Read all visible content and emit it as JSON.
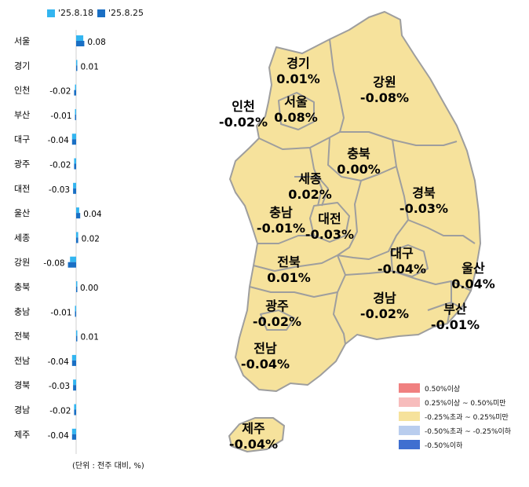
{
  "legend_top": [
    {
      "label": "'25.8.18",
      "color": "#33b5f0"
    },
    {
      "label": "'25.8.25",
      "color": "#1a6fc4"
    }
  ],
  "unit_note": "(단위 : 전주 대비, %)",
  "map_legend": [
    {
      "label": "0.50%이상",
      "color": "#f08080"
    },
    {
      "label": "0.25%이상 ~ 0.50%미만",
      "color": "#f7bcbc"
    },
    {
      "label": "-0.25%초과 ~ 0.25%미만",
      "color": "#f6e29c"
    },
    {
      "label": "-0.50%초과 ~ -0.25%이하",
      "color": "#b9cdee"
    },
    {
      "label": "-0.50%이하",
      "color": "#3f6fd0"
    }
  ],
  "chart_data": {
    "type": "bar",
    "orientation": "horizontal",
    "categories": [
      "서울",
      "경기",
      "인천",
      "부산",
      "대구",
      "광주",
      "대전",
      "울산",
      "세종",
      "강원",
      "충북",
      "충남",
      "전북",
      "전남",
      "경북",
      "경남",
      "제주"
    ],
    "series": [
      {
        "name": "'25.8.18",
        "values": [
          0.07,
          0.01,
          -0.01,
          -0.01,
          -0.04,
          -0.02,
          -0.03,
          0.03,
          0.02,
          -0.06,
          0.0,
          -0.01,
          0.01,
          -0.04,
          -0.03,
          -0.02,
          -0.04
        ]
      },
      {
        "name": "'25.8.25",
        "values": [
          0.08,
          0.01,
          -0.02,
          -0.01,
          -0.04,
          -0.02,
          -0.03,
          0.04,
          0.02,
          -0.08,
          0.0,
          -0.01,
          0.01,
          -0.04,
          -0.03,
          -0.02,
          -0.04
        ]
      }
    ],
    "data_labels": [
      "0.08",
      "0.01",
      "-0.02",
      "-0.01",
      "-0.04",
      "-0.02",
      "-0.03",
      "0.04",
      "0.02",
      "-0.08",
      "0.00",
      "-0.01",
      "0.01",
      "-0.04",
      "-0.03",
      "-0.02",
      "-0.04"
    ]
  },
  "map_regions": [
    {
      "name": "경기",
      "value": "0.01%"
    },
    {
      "name": "강원",
      "value": "-0.08%"
    },
    {
      "name": "인천",
      "value": "-0.02%"
    },
    {
      "name": "서울",
      "value": "0.08%"
    },
    {
      "name": "충북",
      "value": "0.00%"
    },
    {
      "name": "세종",
      "value": "0.02%"
    },
    {
      "name": "경북",
      "value": "-0.03%"
    },
    {
      "name": "충남",
      "value": "-0.01%"
    },
    {
      "name": "대전",
      "value": "-0.03%"
    },
    {
      "name": "대구",
      "value": "-0.04%"
    },
    {
      "name": "울산",
      "value": "0.04%"
    },
    {
      "name": "전북",
      "value": "0.01%"
    },
    {
      "name": "경남",
      "value": "-0.02%"
    },
    {
      "name": "부산",
      "value": "-0.01%"
    },
    {
      "name": "광주",
      "value": "-0.02%"
    },
    {
      "name": "전남",
      "value": "-0.04%"
    },
    {
      "name": "제주",
      "value": "-0.04%"
    }
  ]
}
